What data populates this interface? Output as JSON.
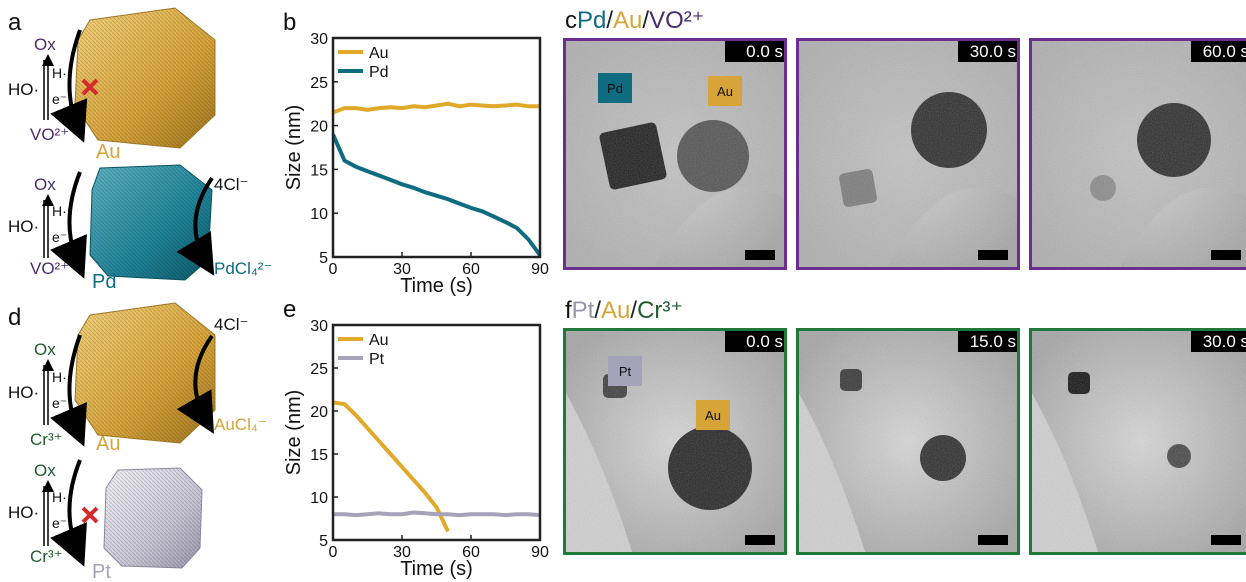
{
  "panel_a": {
    "label": "a",
    "upper": {
      "oxidant": "Ox",
      "hydroxyl": "HO·",
      "hydrogen": "H·",
      "electron": "e⁻",
      "reduced": "VO²⁺",
      "metal": "Au"
    },
    "lower": {
      "oxidant": "Ox",
      "hydroxyl": "HO·",
      "hydrogen": "H·",
      "electron": "e⁻",
      "reduced": "VO²⁺",
      "metal": "Pd",
      "ligand": "4Cl⁻",
      "product": "PdCl₄²⁻"
    }
  },
  "panel_d": {
    "label": "d",
    "upper": {
      "oxidant": "Ox",
      "hydroxyl": "HO·",
      "hydrogen": "H·",
      "electron": "e⁻",
      "reduced": "Cr³⁺",
      "metal": "Au",
      "ligand": "4Cl⁻",
      "product": "AuCl₄⁻"
    },
    "lower": {
      "oxidant": "Ox",
      "hydroxyl": "HO·",
      "hydrogen": "H·",
      "electron": "e⁻",
      "reduced": "Cr³⁺",
      "metal": "Pt"
    }
  },
  "panel_c": {
    "label": "c",
    "title": [
      "Pd",
      "/",
      "Au",
      "/",
      "VO²⁺"
    ],
    "frames": [
      "0.0 s",
      "30.0 s",
      "60.0 s"
    ],
    "particle_labels": [
      "Pd",
      "Au"
    ]
  },
  "panel_f": {
    "label": "f",
    "title": [
      "Pt",
      "/",
      "Au",
      "/",
      "Cr³⁺"
    ],
    "frames": [
      "0.0 s",
      "15.0 s",
      "30.0 s"
    ],
    "particle_labels": [
      "Pt",
      "Au"
    ]
  },
  "chart_data": [
    {
      "type": "line",
      "label": "b",
      "x_label": "Time (s)",
      "y_label": "Size (nm)",
      "x": [
        0,
        5,
        10,
        15,
        20,
        25,
        30,
        35,
        40,
        45,
        50,
        55,
        60,
        65,
        70,
        75,
        80,
        85,
        90
      ],
      "series": [
        {
          "name": "Au",
          "color": "#e0a92a",
          "values": [
            21.5,
            22,
            22,
            21.8,
            22,
            22.1,
            22,
            22.2,
            22.1,
            22.3,
            22.5,
            22.2,
            22.4,
            22.3,
            22.2,
            22.3,
            22.4,
            22.2,
            22.2
          ]
        },
        {
          "name": "Pd",
          "color": "#0e6b80",
          "values": [
            19,
            16,
            15.3,
            14.8,
            14.3,
            13.8,
            13.3,
            12.9,
            12.4,
            12,
            11.6,
            11.1,
            10.6,
            10.2,
            9.6,
            9,
            8.3,
            7,
            5.2
          ]
        }
      ],
      "xlim": [
        0,
        90
      ],
      "xticks": [
        0,
        30,
        60,
        90
      ],
      "ylim": [
        5,
        30
      ],
      "yticks": [
        5,
        10,
        15,
        20,
        25,
        30
      ],
      "legend": "top-left"
    },
    {
      "type": "line",
      "label": "e",
      "x_label": "Time (s)",
      "y_label": "Size (nm)",
      "x": [
        0,
        5,
        10,
        15,
        20,
        25,
        30,
        35,
        40,
        45,
        50,
        55,
        60,
        65,
        70,
        75,
        80,
        85,
        90
      ],
      "series": [
        {
          "name": "Au",
          "color": "#e0a92a",
          "values": [
            21,
            20.8,
            19.5,
            18,
            16.5,
            15,
            13.5,
            12,
            10.5,
            8.8,
            6,
            null,
            null,
            null,
            null,
            null,
            null,
            null,
            null
          ]
        },
        {
          "name": "Pt",
          "color": "#a5a3b8",
          "values": [
            8,
            8,
            7.9,
            8,
            8.1,
            8,
            8,
            8.2,
            8.1,
            8,
            8,
            7.9,
            8,
            8,
            8,
            7.9,
            8,
            8,
            7.9
          ]
        }
      ],
      "xlim": [
        0,
        90
      ],
      "xticks": [
        0,
        30,
        60,
        90
      ],
      "ylim": [
        5,
        30
      ],
      "yticks": [
        5,
        10,
        15,
        20,
        25,
        30
      ],
      "legend": "top-left"
    }
  ]
}
